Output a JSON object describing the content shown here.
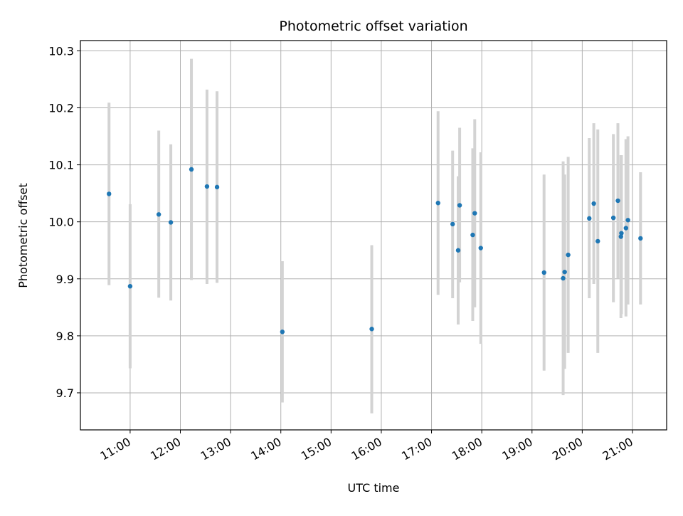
{
  "chart_data": {
    "type": "scatter",
    "title": "Photometric offset variation",
    "xlabel": "UTC time",
    "ylabel": "Photometric offset",
    "x_axis": {
      "unit": "UTC hour of day",
      "range": [
        10.01,
        21.68
      ],
      "ticks": [
        11,
        12,
        13,
        14,
        15,
        16,
        17,
        18,
        19,
        20,
        21
      ],
      "tick_labels": [
        "11:00",
        "12:00",
        "13:00",
        "14:00",
        "15:00",
        "16:00",
        "17:00",
        "18:00",
        "19:00",
        "20:00",
        "21:00"
      ],
      "tick_label_rotation": "30 degrees"
    },
    "y_axis": {
      "range": [
        9.635,
        10.318
      ],
      "ticks": [
        9.7,
        9.8,
        9.9,
        10.0,
        10.1,
        10.2,
        10.3
      ],
      "tick_labels": [
        "9.7",
        "9.8",
        "9.9",
        "10.0",
        "10.1",
        "10.2",
        "10.3"
      ]
    },
    "grid": true,
    "point_color": "#1f77b4",
    "errorbar_color": "#d3d3d3",
    "points": [
      {
        "x": 10.58,
        "y": 10.049,
        "low": 9.889,
        "high": 10.209
      },
      {
        "x": 11.0,
        "y": 9.887,
        "low": 9.743,
        "high": 10.031
      },
      {
        "x": 11.57,
        "y": 10.013,
        "low": 9.867,
        "high": 10.16
      },
      {
        "x": 11.81,
        "y": 9.999,
        "low": 9.862,
        "high": 10.136
      },
      {
        "x": 12.22,
        "y": 10.092,
        "low": 9.898,
        "high": 10.286
      },
      {
        "x": 12.53,
        "y": 10.062,
        "low": 9.891,
        "high": 10.232
      },
      {
        "x": 12.73,
        "y": 10.061,
        "low": 9.893,
        "high": 10.229
      },
      {
        "x": 14.03,
        "y": 9.807,
        "low": 9.683,
        "high": 9.931
      },
      {
        "x": 15.81,
        "y": 9.812,
        "low": 9.664,
        "high": 9.959
      },
      {
        "x": 17.13,
        "y": 10.033,
        "low": 9.872,
        "high": 10.194
      },
      {
        "x": 17.42,
        "y": 9.996,
        "low": 9.866,
        "high": 10.125
      },
      {
        "x": 17.53,
        "y": 9.95,
        "low": 9.82,
        "high": 10.08
      },
      {
        "x": 17.56,
        "y": 10.029,
        "low": 9.894,
        "high": 10.165
      },
      {
        "x": 17.82,
        "y": 9.977,
        "low": 9.826,
        "high": 10.129
      },
      {
        "x": 17.86,
        "y": 10.015,
        "low": 9.85,
        "high": 10.18
      },
      {
        "x": 17.98,
        "y": 9.954,
        "low": 9.786,
        "high": 10.122
      },
      {
        "x": 19.24,
        "y": 9.911,
        "low": 9.739,
        "high": 10.083
      },
      {
        "x": 19.62,
        "y": 9.901,
        "low": 9.696,
        "high": 10.106
      },
      {
        "x": 19.65,
        "y": 9.912,
        "low": 9.742,
        "high": 10.083
      },
      {
        "x": 19.72,
        "y": 9.942,
        "low": 9.77,
        "high": 10.114
      },
      {
        "x": 20.14,
        "y": 10.006,
        "low": 9.866,
        "high": 10.147
      },
      {
        "x": 20.23,
        "y": 10.032,
        "low": 9.891,
        "high": 10.173
      },
      {
        "x": 20.31,
        "y": 9.966,
        "low": 9.77,
        "high": 10.162
      },
      {
        "x": 20.62,
        "y": 10.007,
        "low": 9.859,
        "high": 10.154
      },
      {
        "x": 20.71,
        "y": 10.037,
        "low": 9.9,
        "high": 10.173
      },
      {
        "x": 20.77,
        "y": 9.974,
        "low": 9.831,
        "high": 10.117
      },
      {
        "x": 20.78,
        "y": 9.98,
        "low": 9.838,
        "high": 10.117
      },
      {
        "x": 20.87,
        "y": 9.989,
        "low": 9.834,
        "high": 10.145
      },
      {
        "x": 20.91,
        "y": 10.003,
        "low": 9.855,
        "high": 10.15
      },
      {
        "x": 21.16,
        "y": 9.971,
        "low": 9.855,
        "high": 10.087
      }
    ]
  }
}
